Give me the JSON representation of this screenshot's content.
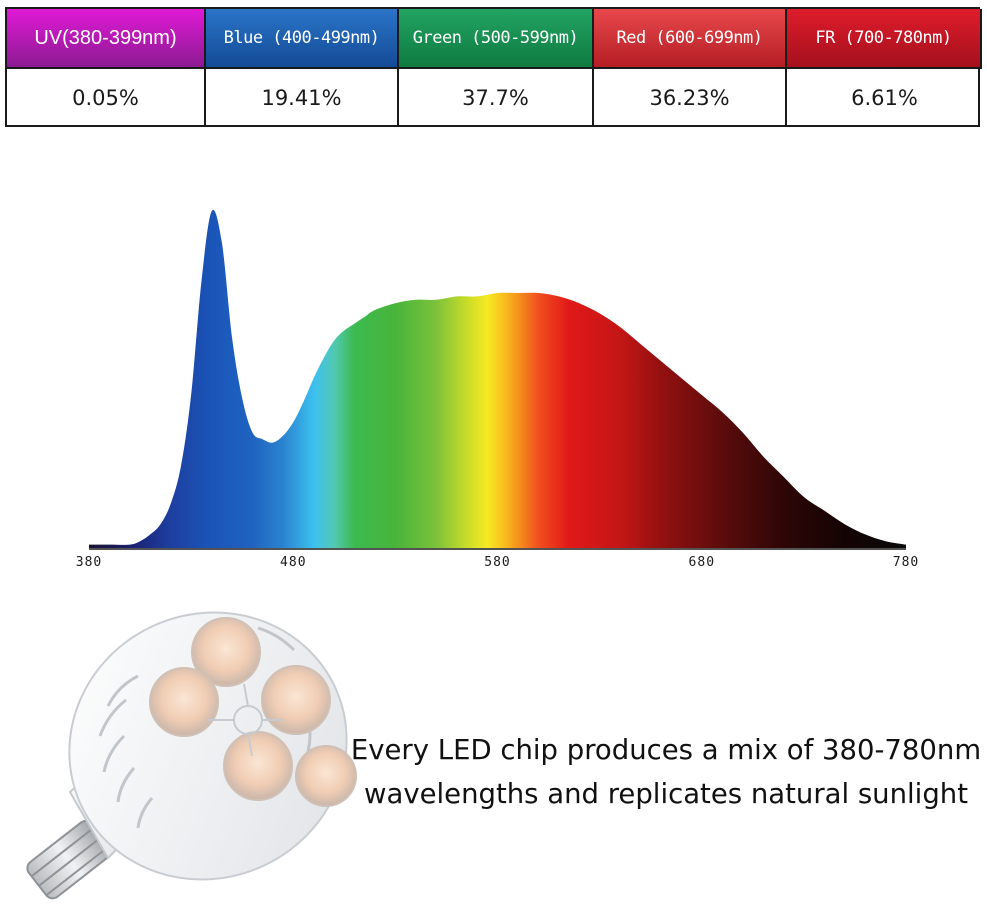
{
  "bands": [
    {
      "label": "UV(380-399nm)",
      "value": "0.05%",
      "color_top": "#e01ad6",
      "color_bottom": "#8c1a92"
    },
    {
      "label": "Blue (400-499nm)",
      "value": "19.41%",
      "color_top": "#2a74c8",
      "color_bottom": "#144b96"
    },
    {
      "label": "Green (500-599nm)",
      "value": "37.7%",
      "color_top": "#22a463",
      "color_bottom": "#0f7a40"
    },
    {
      "label": "Red (600-699nm)",
      "value": "36.23%",
      "color_top": "#e8484c",
      "color_bottom": "#b41e24"
    },
    {
      "label": "FR (700-780nm)",
      "value": "6.61%",
      "color_top": "#df1c2c",
      "color_bottom": "#a5101c"
    }
  ],
  "chart_data": {
    "type": "area",
    "x": [
      380,
      390,
      400,
      405,
      410,
      415,
      420,
      425,
      430,
      435,
      440,
      445,
      450,
      455,
      460,
      465,
      470,
      475,
      480,
      485,
      490,
      495,
      500,
      505,
      510,
      515,
      520,
      530,
      540,
      550,
      560,
      570,
      580,
      590,
      600,
      610,
      620,
      630,
      640,
      650,
      660,
      670,
      680,
      690,
      700,
      710,
      720,
      730,
      740,
      750,
      760,
      770,
      780
    ],
    "y": [
      0.01,
      0.01,
      0.01,
      0.02,
      0.04,
      0.07,
      0.13,
      0.24,
      0.45,
      0.78,
      0.99,
      0.9,
      0.62,
      0.44,
      0.34,
      0.32,
      0.31,
      0.33,
      0.37,
      0.43,
      0.5,
      0.56,
      0.61,
      0.64,
      0.66,
      0.68,
      0.7,
      0.72,
      0.73,
      0.73,
      0.74,
      0.74,
      0.75,
      0.75,
      0.75,
      0.74,
      0.72,
      0.69,
      0.65,
      0.6,
      0.55,
      0.5,
      0.45,
      0.4,
      0.34,
      0.27,
      0.21,
      0.15,
      0.11,
      0.07,
      0.04,
      0.02,
      0.01
    ],
    "xticks": [
      "380",
      "480",
      "580",
      "680",
      "780"
    ],
    "xlim": [
      380,
      780
    ],
    "ylim": [
      0,
      1
    ],
    "grid": false,
    "gradient": [
      {
        "nm": 380,
        "color": "#1c1230"
      },
      {
        "nm": 400,
        "color": "#1a1f6e"
      },
      {
        "nm": 420,
        "color": "#1d3fa0"
      },
      {
        "nm": 440,
        "color": "#1a55b8"
      },
      {
        "nm": 460,
        "color": "#1f63c0"
      },
      {
        "nm": 475,
        "color": "#2a84d0"
      },
      {
        "nm": 490,
        "color": "#3cc0f0"
      },
      {
        "nm": 500,
        "color": "#52c9b4"
      },
      {
        "nm": 510,
        "color": "#3cba50"
      },
      {
        "nm": 530,
        "color": "#48b43a"
      },
      {
        "nm": 550,
        "color": "#7cc23a"
      },
      {
        "nm": 565,
        "color": "#c8dc28"
      },
      {
        "nm": 575,
        "color": "#f7ea22"
      },
      {
        "nm": 585,
        "color": "#f8b41c"
      },
      {
        "nm": 600,
        "color": "#f0501e"
      },
      {
        "nm": 615,
        "color": "#e11818"
      },
      {
        "nm": 640,
        "color": "#c41616"
      },
      {
        "nm": 660,
        "color": "#941010"
      },
      {
        "nm": 690,
        "color": "#5c0c0c"
      },
      {
        "nm": 720,
        "color": "#2e0606"
      },
      {
        "nm": 750,
        "color": "#140304"
      },
      {
        "nm": 780,
        "color": "#0a0a0a"
      }
    ]
  },
  "caption": {
    "line1": "Every LED chip produces a mix of 380-780nm",
    "line2": "wavelengths and replicates natural sunlight"
  },
  "bulb": {
    "icon": "led-bulb-icon"
  }
}
